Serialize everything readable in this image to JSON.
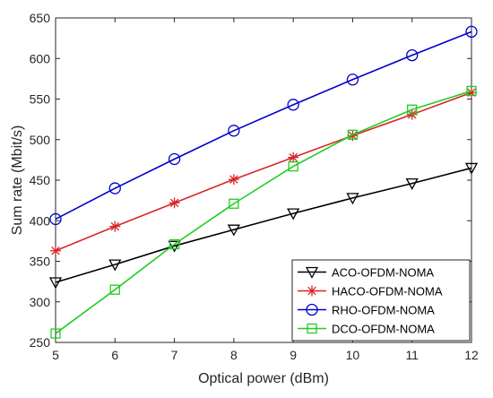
{
  "chart_data": {
    "type": "line",
    "title": "",
    "xlabel": "Optical power (dBm)",
    "ylabel": "Sum rate (Mbit/s)",
    "xlim": [
      5,
      12
    ],
    "ylim": [
      250,
      650
    ],
    "x_ticks": [
      5,
      6,
      7,
      8,
      9,
      10,
      11,
      12
    ],
    "y_ticks": [
      250,
      300,
      350,
      400,
      450,
      500,
      550,
      600,
      650
    ],
    "grid": false,
    "legend_position": "bottom-right",
    "x": [
      5,
      6,
      7,
      8,
      9,
      10,
      11,
      12
    ],
    "series": [
      {
        "name": "ACO-OFDM-NOMA",
        "color": "#000000",
        "marker": "triangle-down",
        "values": [
          324,
          346,
          369,
          389,
          409,
          428,
          446,
          465
        ]
      },
      {
        "name": "HACO-OFDM-NOMA",
        "color": "#d62728",
        "marker": "asterisk",
        "values": [
          363,
          393,
          422,
          451,
          478,
          505,
          531,
          558
        ]
      },
      {
        "name": "RHO-OFDM-NOMA",
        "color": "#0000cc",
        "marker": "circle",
        "values": [
          402,
          440,
          476,
          511,
          543,
          574,
          604,
          633
        ]
      },
      {
        "name": "DCO-OFDM-NOMA",
        "color": "#22cc22",
        "marker": "square",
        "values": [
          261,
          315,
          371,
          421,
          467,
          506,
          537,
          560
        ]
      }
    ]
  }
}
